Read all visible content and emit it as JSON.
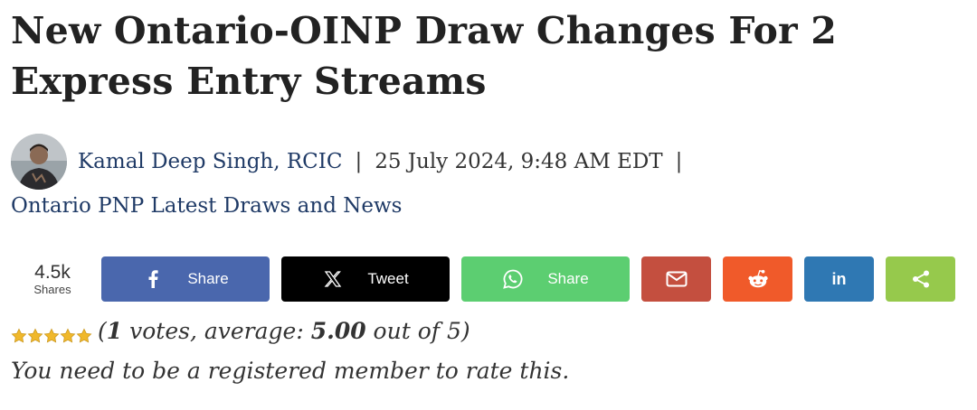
{
  "article": {
    "title": "New Ontario-OINP Draw Changes For 2 Express Entry Streams"
  },
  "byline": {
    "author": "Kamal Deep Singh, RCIC",
    "separator": "|",
    "date": "25 July 2024, 9:48 AM EDT",
    "category": "Ontario PNP Latest Draws and News"
  },
  "share": {
    "count": "4.5k",
    "count_label": "Shares",
    "buttons": [
      {
        "id": "facebook",
        "label": "Share",
        "color": "#4a67ad",
        "icon": "facebook-icon"
      },
      {
        "id": "x",
        "label": "Tweet",
        "color": "#000000",
        "icon": "x-icon"
      },
      {
        "id": "whatsapp",
        "label": "Share",
        "color": "#5cce71",
        "icon": "whatsapp-icon"
      },
      {
        "id": "email",
        "color": "#c44f3f",
        "icon": "envelope-icon"
      },
      {
        "id": "reddit",
        "color": "#f05a2a",
        "icon": "reddit-icon"
      },
      {
        "id": "linkedin",
        "label": "in",
        "color": "#2f78b3",
        "icon": "linkedin-icon"
      },
      {
        "id": "more",
        "color": "#96c94c",
        "icon": "share-icon"
      }
    ]
  },
  "rating": {
    "stars": 5,
    "open": "(",
    "votes": "1",
    "votes_text": " votes, average: ",
    "average": "5.00",
    "out_of_text": " out of ",
    "max": "5",
    "close": ")",
    "note": "You need to be a registered member to rate this."
  }
}
